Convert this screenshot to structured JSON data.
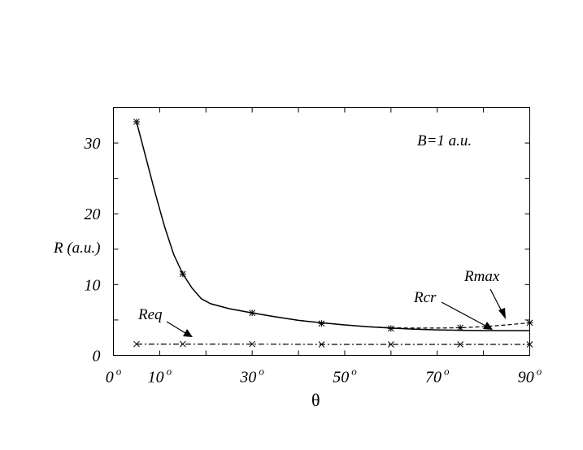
{
  "chart_data": {
    "type": "line",
    "xlabel": "θ",
    "ylabel": "R (a.u.)",
    "xlim": [
      0,
      90
    ],
    "ylim": [
      0,
      35
    ],
    "x_ticks": [
      0,
      10,
      30,
      50,
      70,
      90
    ],
    "x_tick_labels": [
      "0",
      "10",
      "30",
      "50",
      "70",
      "90"
    ],
    "x_tick_unit": "o",
    "x_minor_ticks": [
      20,
      40,
      60,
      80
    ],
    "y_ticks": [
      0,
      10,
      20,
      30
    ],
    "y_tick_labels": [
      "0",
      "10",
      "20",
      "30"
    ],
    "y_minor_ticks": [
      5,
      15,
      25
    ],
    "grid": false,
    "legend": "none",
    "annotations": [
      {
        "text": "B=1 a.u."
      },
      {
        "text": "Rmax"
      },
      {
        "text": "Rcr"
      },
      {
        "text": "Req"
      }
    ],
    "series": [
      {
        "name": "Rcr",
        "style": "solid",
        "x": [
          5,
          7,
          9,
          11,
          13,
          15,
          17,
          19,
          21,
          25,
          30,
          35,
          40,
          45,
          50,
          55,
          60,
          65,
          70,
          75,
          80,
          85,
          90
        ],
        "values": [
          33.0,
          28.0,
          23.0,
          18.3,
          14.3,
          11.5,
          9.5,
          8.0,
          7.3,
          6.6,
          6.0,
          5.45,
          4.95,
          4.6,
          4.3,
          4.05,
          3.85,
          3.7,
          3.6,
          3.55,
          3.5,
          3.5,
          3.5
        ]
      },
      {
        "name": "Rmax",
        "style": "dashed",
        "x": [
          21,
          25,
          30,
          35,
          40,
          45,
          50,
          55,
          60,
          65,
          70,
          75,
          80,
          85,
          90
        ],
        "values": [
          7.3,
          6.6,
          6.0,
          5.45,
          4.95,
          4.6,
          4.3,
          4.05,
          3.9,
          3.85,
          3.85,
          3.9,
          4.05,
          4.3,
          4.6
        ]
      },
      {
        "name": "Req",
        "style": "dash-dot",
        "x": [
          5,
          15,
          30,
          45,
          60,
          75,
          90
        ],
        "values": [
          1.6,
          1.6,
          1.6,
          1.55,
          1.55,
          1.55,
          1.55
        ]
      }
    ],
    "markers": [
      {
        "x": 5,
        "y": 33.0,
        "symbol": "asterisk"
      },
      {
        "x": 15,
        "y": 11.5,
        "symbol": "asterisk"
      },
      {
        "x": 30,
        "y": 6.0,
        "symbol": "asterisk"
      },
      {
        "x": 45,
        "y": 4.5,
        "symbol": "asterisk"
      },
      {
        "x": 60,
        "y": 3.8,
        "symbol": "asterisk"
      },
      {
        "x": 75,
        "y": 3.9,
        "symbol": "asterisk"
      },
      {
        "x": 90,
        "y": 4.6,
        "symbol": "asterisk"
      },
      {
        "x": 5,
        "y": 1.6,
        "symbol": "cross"
      },
      {
        "x": 15,
        "y": 1.6,
        "symbol": "cross"
      },
      {
        "x": 30,
        "y": 1.6,
        "symbol": "cross"
      },
      {
        "x": 45,
        "y": 1.55,
        "symbol": "cross"
      },
      {
        "x": 60,
        "y": 1.55,
        "symbol": "cross"
      },
      {
        "x": 75,
        "y": 1.55,
        "symbol": "cross"
      },
      {
        "x": 90,
        "y": 1.55,
        "symbol": "cross"
      }
    ]
  }
}
